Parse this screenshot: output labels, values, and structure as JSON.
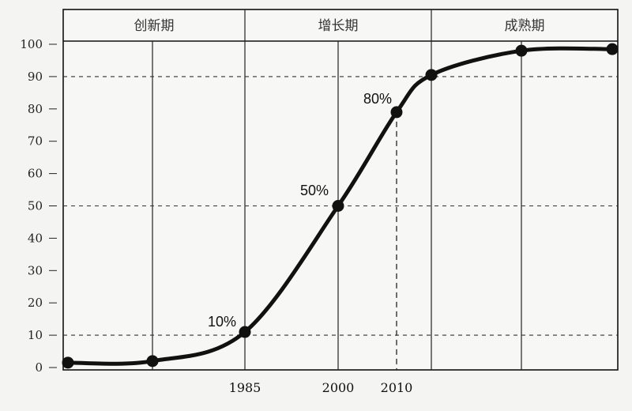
{
  "chart_data": {
    "type": "line",
    "title": "",
    "xlabel": "",
    "ylabel": "",
    "ylim": [
      0,
      100
    ],
    "y_ticks": [
      "0",
      "10",
      "20",
      "30",
      "40",
      "50",
      "60",
      "70",
      "80",
      "90",
      "100"
    ],
    "x_tick_labels": [
      "1985",
      "2000",
      "2010"
    ],
    "phases": [
      "创新期",
      "增长期",
      "成熟期"
    ],
    "annotations": [
      "10%",
      "50%",
      "80%"
    ],
    "reference_lines_y": [
      10,
      50,
      90
    ],
    "grid": "dashed horizontal at 10, 50, 90; dashed vertical at 2010",
    "line_color": "#111111",
    "series": [
      {
        "points": [
          {
            "x": "",
            "y": 1.5
          },
          {
            "x": "",
            "y": 2
          },
          {
            "x": "1985",
            "y": 11
          },
          {
            "x": "2000",
            "y": 50
          },
          {
            "x": "2010",
            "y": 79
          },
          {
            "x": "",
            "y": 90.5
          },
          {
            "x": "",
            "y": 98
          },
          {
            "x": "",
            "y": 98.5
          }
        ]
      }
    ]
  }
}
